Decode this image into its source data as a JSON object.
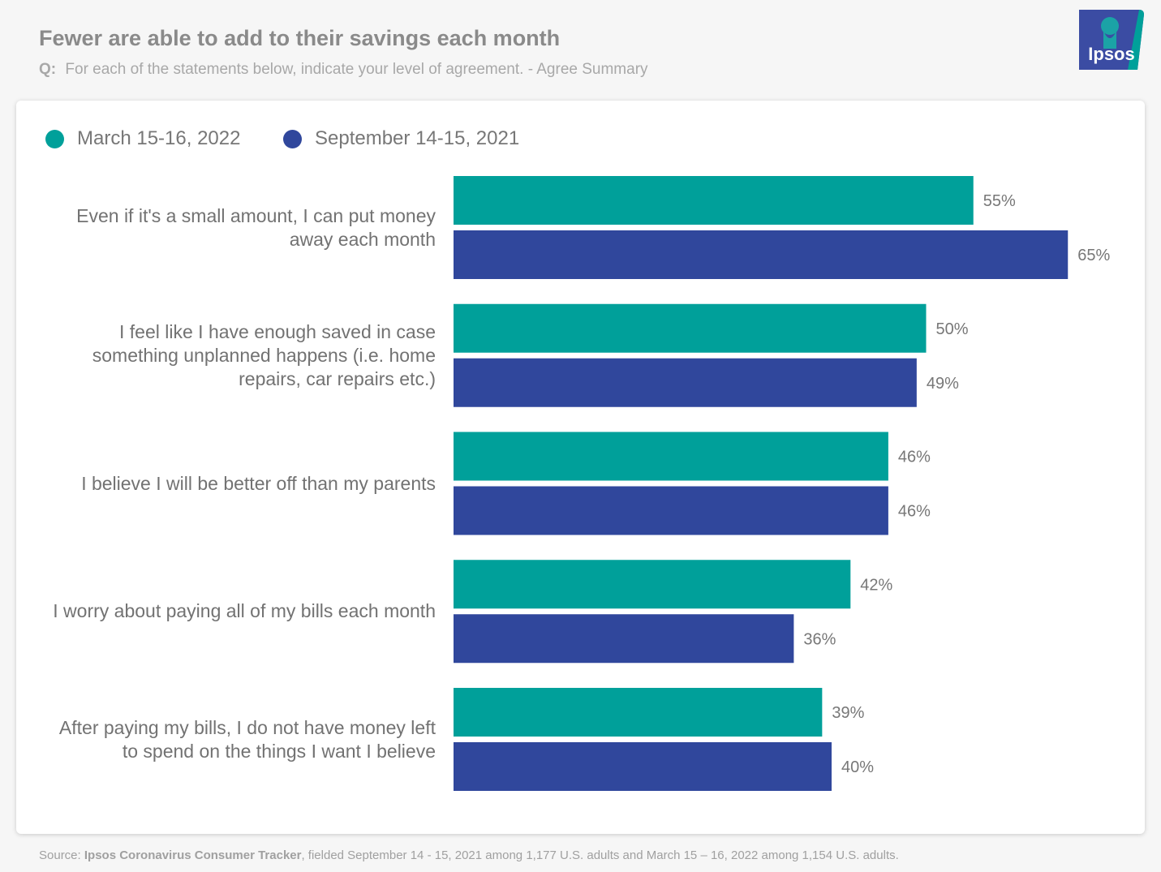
{
  "header": {
    "title": "Fewer are able to add to their savings each month",
    "question_prefix": "Q:",
    "question_text": "For each of the statements below, indicate your level of agreement. - Agree Summary"
  },
  "logo": {
    "text": "Ipsos",
    "color": "#2e9a9f",
    "bg": "#3b4ca3"
  },
  "colors": {
    "series_2022": "#00a09a",
    "series_2021": "#30479c"
  },
  "chart_data": {
    "type": "bar",
    "orientation": "horizontal",
    "categories": [
      "Even if it's a small amount, I can put money away each month",
      "I feel like I have enough saved in case something unplanned happens (i.e. home repairs, car repairs etc.)",
      "I believe I will be better off than my parents",
      "I worry about paying all of my bills each month",
      "After paying my bills, I do not have money left to spend on the things I want  I believe"
    ],
    "series": [
      {
        "name": "March 15-16, 2022",
        "values": [
          55,
          50,
          46,
          42,
          39
        ],
        "labels": [
          "55%",
          "50%",
          "46%",
          "42%",
          "39%"
        ]
      },
      {
        "name": "September 14-15, 2021",
        "values": [
          65,
          49,
          46,
          36,
          40
        ],
        "labels": [
          "65%",
          "49%",
          "46%",
          "36%",
          "40%"
        ]
      }
    ],
    "xlim": [
      0,
      100
    ],
    "legend_position": "top-left",
    "grid": false,
    "title": "Fewer are able to add to their savings each month"
  },
  "footer": {
    "prefix": "Source: ",
    "bold_text": "Ipsos Coronavirus Consumer Tracker",
    "rest": ", fielded September 14 - 15, 2021 among 1,177 U.S. adults and March 15 – 16, 2022 among 1,154 U.S. adults."
  }
}
